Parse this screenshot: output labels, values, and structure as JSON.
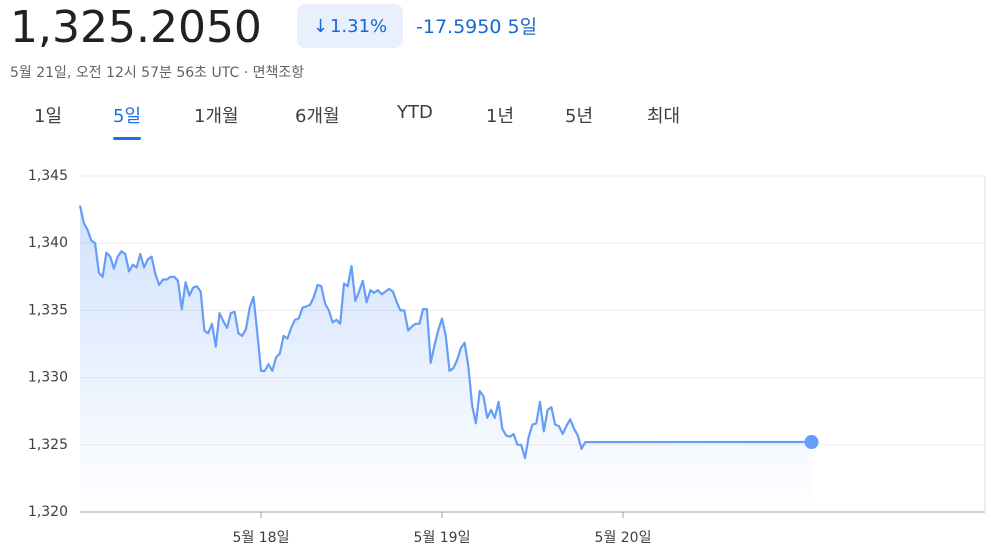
{
  "header": {
    "price": "1,325.2050",
    "change_percent": "1.31%",
    "change_abs": "-17.5950",
    "period": "5일",
    "timestamp": "5월 21일, 오전 12시 57분 56초 UTC",
    "separator": "·",
    "disclaimer": "면책조항"
  },
  "tabs": {
    "items": [
      "1일",
      "5일",
      "1개월",
      "6개월",
      "YTD",
      "1년",
      "5년",
      "최대"
    ],
    "selected": 1
  },
  "chart_data": {
    "type": "line",
    "grid": true,
    "x": [
      0,
      0.5,
      1,
      1.5,
      2,
      2.5,
      3,
      3.5,
      4,
      4.5,
      5,
      5.5,
      6,
      6.5,
      7,
      7.5,
      8,
      8.5,
      9,
      9.5,
      10,
      10.5,
      11,
      11.5,
      12,
      12.5,
      13,
      13.5,
      14,
      14.5,
      15,
      15.5,
      16,
      16.5,
      17,
      17.5,
      18,
      18.5,
      19,
      19.5,
      20,
      20.5,
      21,
      21.5,
      22,
      22.5,
      23,
      23.5,
      24,
      24.5,
      25,
      25.5,
      26,
      26.5,
      27,
      27.5,
      28,
      28.5,
      29,
      29.5,
      30,
      30.5,
      31,
      31.5,
      32,
      32.5,
      33,
      33.5,
      34,
      34.5,
      35,
      35.5,
      36,
      36.5,
      37,
      37.5,
      38,
      38.5,
      39,
      39.5,
      40,
      40.5,
      41,
      41.5,
      42,
      42.5,
      43,
      43.5,
      44,
      44.5,
      45,
      45.5,
      46,
      46.5,
      47,
      47.5,
      48,
      48.5,
      49,
      49.5,
      50,
      50.5,
      51,
      51.5,
      52,
      52.5,
      53,
      53.5,
      54,
      54.5,
      55,
      55.5,
      56,
      56.5,
      57,
      57.5,
      58,
      58.5,
      59,
      59.5,
      60,
      60.5,
      61,
      61.5,
      62,
      62.5,
      63,
      63.5,
      64,
      64.5,
      65,
      65.5,
      66,
      66.5,
      67,
      97
    ],
    "series": [
      {
        "color": "#669df6",
        "values": [
          1342.8,
          1341.5,
          1341.0,
          1340.2,
          1340.0,
          1337.8,
          1337.5,
          1339.3,
          1339.0,
          1338.1,
          1339.0,
          1339.4,
          1339.2,
          1337.9,
          1338.4,
          1338.2,
          1339.2,
          1338.2,
          1338.8,
          1339.0,
          1337.7,
          1336.9,
          1337.3,
          1337.3,
          1337.5,
          1337.5,
          1337.2,
          1335.1,
          1337.1,
          1336.1,
          1336.7,
          1336.8,
          1336.4,
          1333.5,
          1333.3,
          1334.0,
          1332.3,
          1334.8,
          1334.2,
          1333.7,
          1334.8,
          1334.9,
          1333.3,
          1333.1,
          1333.6,
          1335.2,
          1336.0,
          1333.4,
          1330.5,
          1330.5,
          1331.0,
          1330.5,
          1331.5,
          1331.8,
          1333.1,
          1332.9,
          1333.7,
          1334.3,
          1334.4,
          1335.2,
          1335.3,
          1335.4,
          1336.0,
          1336.9,
          1336.8,
          1335.5,
          1335.0,
          1334.1,
          1334.3,
          1334.0,
          1337.0,
          1336.8,
          1338.3,
          1335.7,
          1336.4,
          1337.2,
          1335.6,
          1336.5,
          1336.3,
          1336.5,
          1336.2,
          1336.4,
          1336.6,
          1336.4,
          1335.6,
          1335.0,
          1335.0,
          1333.5,
          1333.8,
          1334.0,
          1334.0,
          1335.1,
          1335.1,
          1331.1,
          1332.4,
          1333.5,
          1334.4,
          1333.1,
          1330.5,
          1330.7,
          1331.3,
          1332.2,
          1332.6,
          1330.8,
          1327.9,
          1326.6,
          1329.0,
          1328.6,
          1327.0,
          1327.6,
          1327.0,
          1328.2,
          1326.2,
          1325.7,
          1325.6,
          1325.8,
          1325.0,
          1325.0,
          1324.0,
          1325.6,
          1326.5,
          1326.6,
          1328.2,
          1326.0,
          1327.6,
          1327.8,
          1326.5,
          1326.4,
          1325.8,
          1326.4,
          1326.9,
          1326.2,
          1325.7,
          1324.7,
          1325.2,
          1325.205
        ]
      }
    ],
    "xlim": [
      0,
      120
    ],
    "xticks": [
      {
        "value": 24,
        "label": "5월 18일"
      },
      {
        "value": 48,
        "label": "5월 19일"
      },
      {
        "value": 72,
        "label": "5월 20일"
      }
    ],
    "ylim": [
      1320,
      1345
    ],
    "yticks": [
      {
        "value": 1320,
        "label": "1,320"
      },
      {
        "value": 1325,
        "label": "1,325"
      },
      {
        "value": 1330,
        "label": "1,330"
      },
      {
        "value": 1335,
        "label": "1,335"
      },
      {
        "value": 1340,
        "label": "1,340"
      },
      {
        "value": 1345,
        "label": "1,345"
      }
    ]
  }
}
